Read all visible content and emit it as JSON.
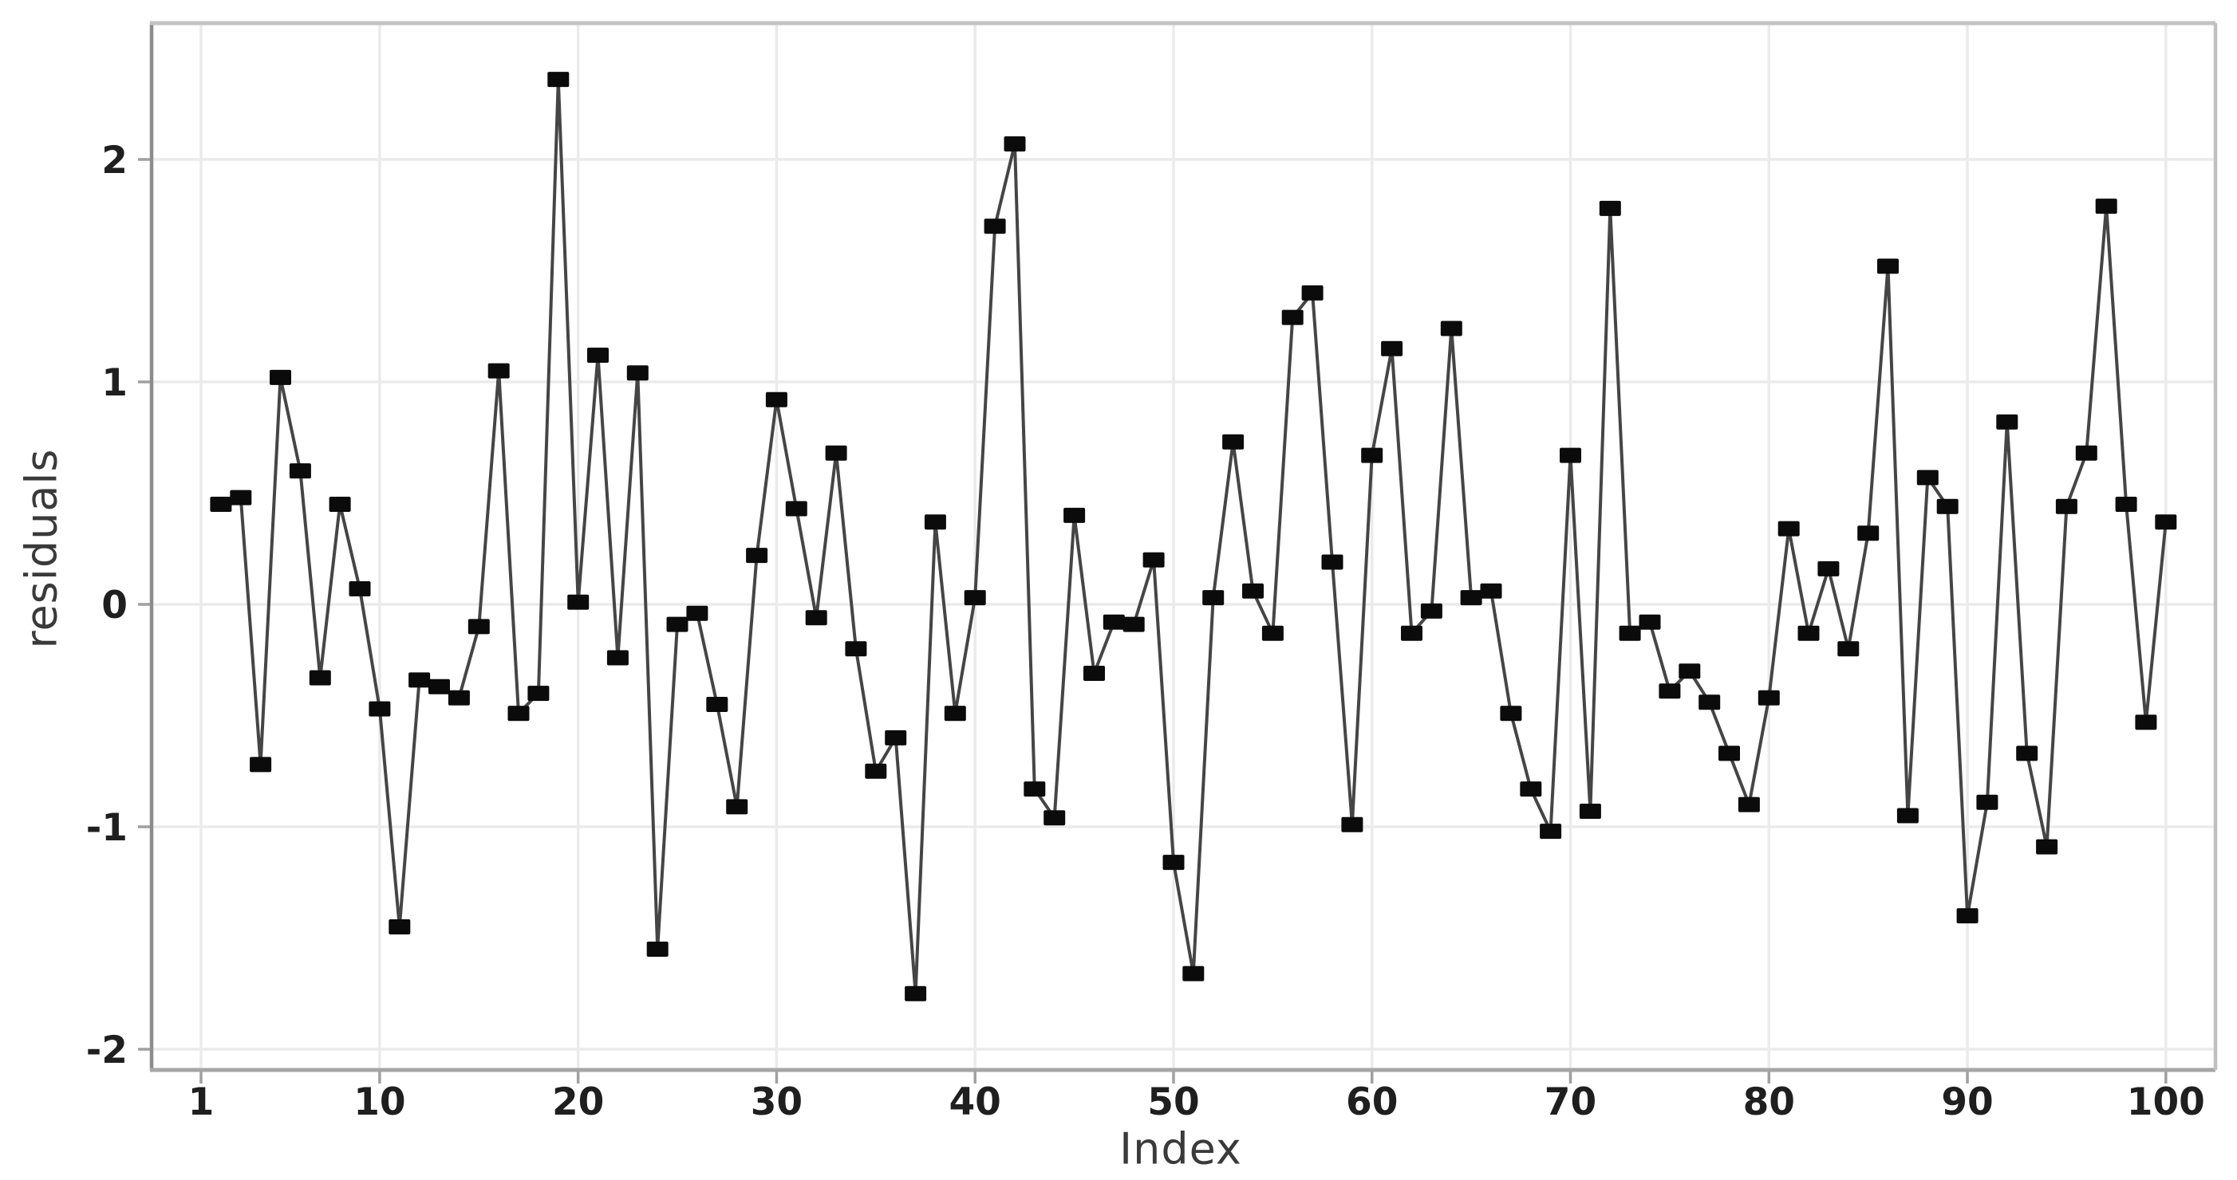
{
  "chart_data": {
    "type": "line",
    "title": "",
    "xlabel": "Index",
    "ylabel": "residuals",
    "series_name": "residuals",
    "marker": "filled-square",
    "grid": true,
    "legend": "none",
    "x_ticks": [
      1,
      10,
      20,
      30,
      40,
      50,
      60,
      70,
      80,
      90,
      100
    ],
    "y_ticks": [
      -2,
      -1,
      0,
      1,
      2
    ],
    "xlim": [
      -1.5,
      102.5
    ],
    "ylim": [
      -2.09,
      2.61
    ],
    "x": [
      2,
      3,
      4,
      5,
      6,
      7,
      8,
      9,
      10,
      11,
      12,
      13,
      14,
      15,
      16,
      17,
      18,
      19,
      20,
      21,
      22,
      23,
      24,
      25,
      26,
      27,
      28,
      29,
      30,
      31,
      32,
      33,
      34,
      35,
      36,
      37,
      38,
      39,
      40,
      41,
      42,
      43,
      44,
      45,
      46,
      47,
      48,
      49,
      50,
      51,
      52,
      53,
      54,
      55,
      56,
      57,
      58,
      59,
      60,
      61,
      62,
      63,
      64,
      65,
      66,
      67,
      68,
      69,
      70,
      71,
      72,
      73,
      74,
      75,
      76,
      77,
      78,
      79,
      80,
      81,
      82,
      83,
      84,
      85,
      86,
      87,
      88,
      89,
      90,
      91,
      92,
      93,
      94,
      95,
      96,
      97,
      98,
      99,
      100
    ],
    "y": [
      0.45,
      0.48,
      -0.72,
      1.02,
      0.6,
      -0.33,
      0.45,
      0.07,
      -0.47,
      -1.45,
      -0.34,
      -0.37,
      -0.42,
      -0.1,
      1.05,
      -0.49,
      -0.4,
      2.36,
      0.01,
      1.12,
      -0.24,
      1.04,
      -1.55,
      -0.09,
      -0.04,
      -0.45,
      -0.91,
      0.22,
      0.92,
      0.43,
      -0.06,
      0.68,
      -0.2,
      -0.75,
      -0.6,
      -1.75,
      0.37,
      -0.49,
      0.03,
      1.7,
      2.07,
      -0.83,
      -0.96,
      0.4,
      -0.31,
      -0.08,
      -0.09,
      0.2,
      -1.16,
      -1.66,
      0.03,
      0.73,
      0.06,
      -0.13,
      1.29,
      1.4,
      0.19,
      -0.99,
      0.67,
      1.15,
      -0.13,
      -0.03,
      1.24,
      0.03,
      0.06,
      -0.49,
      -0.83,
      -1.02,
      0.67,
      -0.93,
      1.78,
      -0.13,
      -0.08,
      -0.39,
      -0.3,
      -0.44,
      -0.67,
      -0.9,
      -0.42,
      0.34,
      -0.13,
      0.16,
      -0.2,
      0.32,
      1.52,
      -0.95,
      0.57,
      0.44,
      -1.4,
      -0.89,
      0.82,
      -0.67,
      -1.09,
      0.44,
      0.68,
      1.79,
      0.45,
      -0.53,
      0.37
    ],
    "style": {
      "background": "#ffffff",
      "grid_color": "#ebebeb",
      "spine_left": "#8c8c8c",
      "spine_bottom": "#a6a6a6",
      "spine_top": "#c2c2c2",
      "spine_right": "#c0c0c0",
      "tick_mark_color": "#a0a0a0",
      "tick_label_color": "#1f1f1f",
      "axis_title_color": "#3a3a3a",
      "line_color": "#454545",
      "marker_color": "#0b0b0b"
    }
  }
}
